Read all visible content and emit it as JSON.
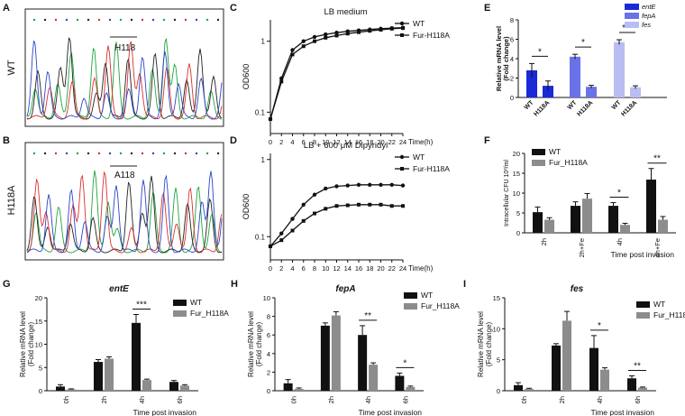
{
  "colors": {
    "black": "#111111",
    "grey": "#8c8c8c",
    "blue": "#1a2ad8",
    "mid_blue": "#6a72e8",
    "light_blue": "#b9bdf3",
    "trace_green": "#1fa53c",
    "trace_red": "#d93030",
    "trace_blue": "#2b45c8",
    "trace_black": "#222222"
  },
  "panel_letters": {
    "a": "A",
    "b": "B",
    "c": "C",
    "d": "D",
    "e": "E",
    "f": "F",
    "g": "G",
    "h": "H",
    "i": "I"
  },
  "chromatograms": [
    {
      "side_label": "WT",
      "site_label": "H118"
    },
    {
      "side_label": "H118A",
      "site_label": "A118"
    }
  ],
  "chart_data": [
    {
      "id": "C",
      "type": "line",
      "title": "LB medium",
      "ylabel": "OD600",
      "xlabel": "Time(h)",
      "yscale": "log",
      "ylim": [
        0.05,
        2
      ],
      "yticks": [
        {
          "v": 0.1,
          "label": "0.1"
        },
        {
          "v": 1,
          "label": "1"
        }
      ],
      "x": [
        0,
        2,
        4,
        6,
        8,
        10,
        12,
        14,
        16,
        18,
        20,
        22,
        24
      ],
      "x_tick_labels": [
        "0",
        "2",
        "4",
        "6",
        "8",
        "10",
        "12",
        "14",
        "16",
        "18",
        "20",
        "22",
        "24"
      ],
      "series": [
        {
          "name": "WT",
          "marker": "circle",
          "values": [
            0.08,
            0.3,
            0.75,
            1.0,
            1.15,
            1.25,
            1.32,
            1.38,
            1.42,
            1.46,
            1.5,
            1.53,
            1.55
          ]
        },
        {
          "name": "Fur-H118A",
          "marker": "square",
          "values": [
            0.08,
            0.27,
            0.65,
            0.85,
            1.0,
            1.12,
            1.2,
            1.28,
            1.34,
            1.4,
            1.45,
            1.5,
            1.53
          ]
        }
      ]
    },
    {
      "id": "D",
      "type": "line",
      "title": "LB + 600 μM Dipyridyl",
      "ylabel": "OD600",
      "xlabel": "Time(h)",
      "yscale": "log",
      "ylim": [
        0.05,
        1.2
      ],
      "yticks": [
        {
          "v": 0.1,
          "label": "0.1"
        },
        {
          "v": 1,
          "label": "1"
        }
      ],
      "x": [
        0,
        2,
        4,
        6,
        8,
        10,
        12,
        14,
        16,
        18,
        20,
        22,
        24
      ],
      "x_tick_labels": [
        "0",
        "2",
        "4",
        "6",
        "8",
        "10",
        "12",
        "14",
        "16",
        "18",
        "20",
        "22",
        "24"
      ],
      "series": [
        {
          "name": "WT",
          "marker": "circle",
          "values": [
            0.075,
            0.11,
            0.17,
            0.26,
            0.35,
            0.42,
            0.45,
            0.46,
            0.47,
            0.47,
            0.47,
            0.47,
            0.46
          ]
        },
        {
          "name": "Fur-H118A",
          "marker": "square",
          "values": [
            0.075,
            0.09,
            0.12,
            0.16,
            0.2,
            0.23,
            0.25,
            0.255,
            0.26,
            0.26,
            0.26,
            0.25,
            0.25
          ]
        }
      ]
    },
    {
      "id": "E",
      "type": "bar",
      "ylabel": "Relative mRNA level",
      "ylabel2": "(Fold change)",
      "ylim": [
        0,
        8
      ],
      "yticks": [
        "0",
        "2",
        "4",
        "6",
        "8"
      ],
      "categories": [
        "WT",
        "H118A",
        "WT",
        "H118A",
        "WT",
        "H118A"
      ],
      "legend": [
        "entE",
        "fepA",
        "fes"
      ],
      "bars": [
        {
          "gene": "entE",
          "value": 2.8,
          "err": 0.7
        },
        {
          "gene": "entE",
          "value": 1.2,
          "err": 0.5
        },
        {
          "gene": "fepA",
          "value": 4.2,
          "err": 0.25
        },
        {
          "gene": "fepA",
          "value": 1.1,
          "err": 0.15
        },
        {
          "gene": "fes",
          "value": 5.7,
          "err": 0.25
        },
        {
          "gene": "fes",
          "value": 1.05,
          "err": 0.15
        }
      ],
      "significance": [
        "*",
        "*",
        "***"
      ]
    },
    {
      "id": "F",
      "type": "bar",
      "ylabel": "Intracellular CFU 10³/ml",
      "xlabel": "Time post invasion",
      "ylim": [
        0,
        20
      ],
      "yticks": [
        "0",
        "5",
        "10",
        "15",
        "20"
      ],
      "categories": [
        "2h",
        "2h+Fe",
        "4h",
        "4h+Fe"
      ],
      "legend": [
        "WT",
        "Fur_H118A"
      ],
      "series": [
        {
          "name": "WT",
          "values": [
            5.2,
            6.8,
            6.8,
            13.4
          ],
          "err": [
            1.3,
            1.0,
            0.8,
            2.8
          ]
        },
        {
          "name": "Fur_H118A",
          "values": [
            3.3,
            8.6,
            2.0,
            3.3
          ],
          "err": [
            0.5,
            1.3,
            0.4,
            0.8
          ]
        }
      ],
      "significance": [
        {
          "group": "4h",
          "mark": "*"
        },
        {
          "group": "4h+Fe",
          "mark": "**"
        }
      ]
    },
    {
      "id": "G",
      "type": "bar",
      "title": "entE",
      "ylabel": "Relative mRNA level",
      "ylabel2": "(Fold change)",
      "xlabel": "Time post invasion",
      "ylim": [
        0,
        20
      ],
      "yticks": [
        "0",
        "5",
        "10",
        "15",
        "20"
      ],
      "categories": [
        "0h",
        "2h",
        "4h",
        "6h"
      ],
      "legend": [
        "WT",
        "Fur_H118A"
      ],
      "series": [
        {
          "name": "WT",
          "values": [
            0.9,
            6.2,
            14.6,
            1.9
          ],
          "err": [
            0.4,
            0.5,
            1.8,
            0.3
          ]
        },
        {
          "name": "Fur_H118A",
          "values": [
            0.3,
            6.9,
            2.3,
            1.1
          ],
          "err": [
            0.1,
            0.4,
            0.2,
            0.2
          ]
        }
      ],
      "significance": [
        {
          "group": "4h",
          "mark": "***"
        }
      ]
    },
    {
      "id": "H",
      "type": "bar",
      "title": "fepA",
      "ylabel": "Relative mRNA level",
      "ylabel2": "(Fold change)",
      "xlabel": "Time post invasion",
      "ylim": [
        0,
        10
      ],
      "yticks": [
        "0",
        "2",
        "4",
        "6",
        "8",
        "10"
      ],
      "categories": [
        "0h",
        "2h",
        "4h",
        "6h"
      ],
      "legend": [
        "WT",
        "Fur_H118A"
      ],
      "series": [
        {
          "name": "WT",
          "values": [
            0.8,
            7.0,
            6.0,
            1.6
          ],
          "err": [
            0.4,
            0.3,
            1.0,
            0.3
          ]
        },
        {
          "name": "Fur_H118A",
          "values": [
            0.2,
            8.1,
            2.8,
            0.4
          ],
          "err": [
            0.1,
            0.4,
            0.2,
            0.1
          ]
        }
      ],
      "significance": [
        {
          "group": "4h",
          "mark": "**"
        },
        {
          "group": "6h",
          "mark": "*"
        }
      ]
    },
    {
      "id": "I",
      "type": "bar",
      "title": "fes",
      "ylabel": "Relative mRNA level",
      "ylabel2": "(Fold change)",
      "xlabel": "Time post invasion",
      "ylim": [
        0,
        15
      ],
      "yticks": [
        "0",
        "5",
        "10",
        "15"
      ],
      "categories": [
        "0h",
        "2h",
        "4h",
        "6h"
      ],
      "legend": [
        "WT",
        "Fur_H118A"
      ],
      "series": [
        {
          "name": "WT",
          "values": [
            0.9,
            7.3,
            6.9,
            2.0
          ],
          "err": [
            0.4,
            0.3,
            2.0,
            0.4
          ]
        },
        {
          "name": "Fur_H118A",
          "values": [
            0.3,
            11.3,
            3.4,
            0.5
          ],
          "err": [
            0.1,
            1.5,
            0.3,
            0.1
          ]
        }
      ],
      "significance": [
        {
          "group": "4h",
          "mark": "*"
        },
        {
          "group": "6h",
          "mark": "**"
        }
      ]
    }
  ]
}
